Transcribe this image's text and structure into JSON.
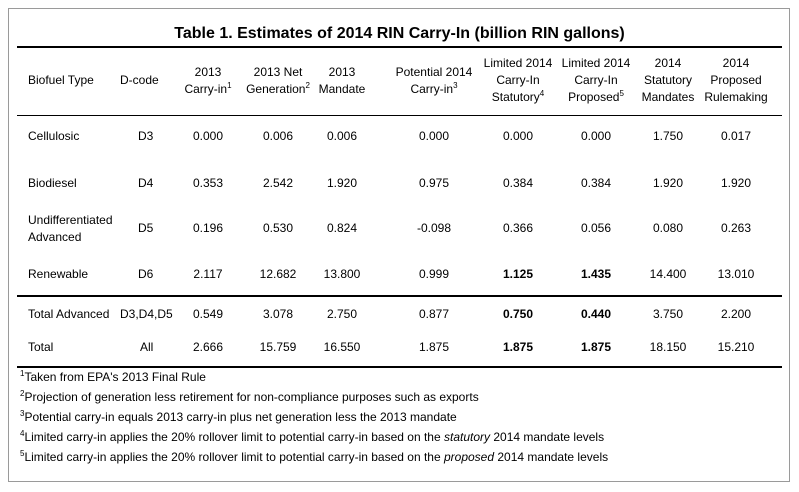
{
  "title": "Table 1.  Estimates of 2014 RIN Carry-In (billion RIN gallons)",
  "headers": {
    "biofuel_type": "Biofuel Type",
    "dcode": "D-code",
    "carry2013": [
      "2013",
      "Carry-in",
      "1"
    ],
    "netgen2013": [
      "2013 Net",
      "Generation",
      "2"
    ],
    "mandate2013": [
      "2013",
      "Mandate"
    ],
    "potential": [
      "Potential 2014",
      "Carry-in",
      "3"
    ],
    "lim_stat": [
      "Limited 2014",
      "Carry-In",
      "Statutory",
      "4"
    ],
    "lim_prop": [
      "Limited 2014",
      "Carry-In",
      "Proposed",
      "5"
    ],
    "stat_mand": [
      "2014",
      "Statutory",
      "Mandates"
    ],
    "prop_rule": [
      "2014",
      "Proposed",
      "Rulemaking"
    ]
  },
  "rows": [
    {
      "type": "Cellulosic",
      "dcode": "D3",
      "c13": "0.000",
      "ng": "0.006",
      "m13": "0.006",
      "pot": "0.000",
      "ls": "0.000",
      "lp": "0.000",
      "sm": "1.750",
      "pr": "0.017"
    },
    {
      "type": "Biodiesel",
      "dcode": "D4",
      "c13": "0.353",
      "ng": "2.542",
      "m13": "1.920",
      "pot": "0.975",
      "ls": "0.384",
      "lp": "0.384",
      "sm": "1.920",
      "pr": "1.920"
    },
    {
      "type1": "Undifferentiated",
      "type2": "Advanced",
      "dcode": "D5",
      "c13": "0.196",
      "ng": "0.530",
      "m13": "0.824",
      "pot": "-0.098",
      "ls": "0.366",
      "lp": "0.056",
      "sm": "0.080",
      "pr": "0.263"
    },
    {
      "type": "Renewable",
      "dcode": "D6",
      "c13": "2.117",
      "ng": "12.682",
      "m13": "13.800",
      "pot": "0.999",
      "ls": "1.125",
      "lp": "1.435",
      "sm": "14.400",
      "pr": "13.010"
    },
    {
      "type": "Total Advanced",
      "dcode": "D3,D4,D5",
      "c13": "0.549",
      "ng": "3.078",
      "m13": "2.750",
      "pot": "0.877",
      "ls": "0.750",
      "lp": "0.440",
      "sm": "3.750",
      "pr": "2.200"
    },
    {
      "type": "Total",
      "dcode": "All",
      "c13": "2.666",
      "ng": "15.759",
      "m13": "16.550",
      "pot": "1.875",
      "ls": "1.875",
      "lp": "1.875",
      "sm": "18.150",
      "pr": "15.210"
    }
  ],
  "notes": [
    {
      "num": "1",
      "text": "Taken from EPA's 2013 Final Rule"
    },
    {
      "num": "2",
      "text": "Projection of generation less retirement for non-compliance purposes such as exports"
    },
    {
      "num": "3",
      "text": "Potential carry-in equals 2013 carry-in plus net generation less the 2013 mandate"
    },
    {
      "num": "4",
      "pre": "Limited carry-in applies the 20% rollover limit to potential carry-in based on the ",
      "em": "statutory",
      "post": " 2014 mandate levels"
    },
    {
      "num": "5",
      "pre": "Limited carry-in applies the 20% rollover limit to potential carry-in based on the ",
      "em": "proposed",
      "post": " 2014 mandate levels"
    }
  ]
}
